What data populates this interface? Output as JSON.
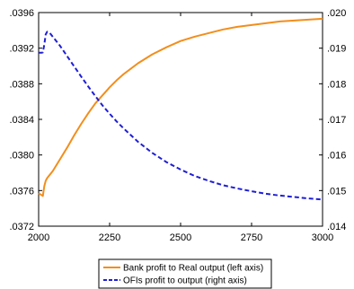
{
  "chart_data": {
    "type": "line",
    "title": "",
    "xlabel": "",
    "ylabel": "",
    "xlim": [
      2000,
      3000
    ],
    "ylim_left": [
      0.0372,
      0.0396
    ],
    "ylim_right": [
      0.014,
      0.02
    ],
    "x_ticks": [
      2000,
      2250,
      2500,
      2750,
      3000
    ],
    "x_tick_labels": [
      "2000",
      "2250",
      "2500",
      "2750",
      "3000"
    ],
    "y_left_ticks": [
      0.0372,
      0.0376,
      0.038,
      0.0384,
      0.0388,
      0.0392,
      0.0396
    ],
    "y_left_tick_labels": [
      ".0372",
      ".0376",
      ".0380",
      ".0384",
      ".0388",
      ".0392",
      ".0396"
    ],
    "y_right_ticks": [
      0.014,
      0.015,
      0.016,
      0.017,
      0.018,
      0.019,
      0.02
    ],
    "y_right_tick_labels": [
      ".014",
      ".015",
      ".016",
      ".017",
      ".018",
      ".019",
      ".020"
    ],
    "grid": false,
    "legend_position": "bottom",
    "series": [
      {
        "name": "Bank profit to Real output (left axis)",
        "axis": "left",
        "color": "#f28e1c",
        "dash": "solid",
        "x": [
          2000,
          2010,
          2015,
          2020,
          2025,
          2030,
          2040,
          2050,
          2075,
          2100,
          2125,
          2150,
          2175,
          2200,
          2225,
          2250,
          2275,
          2300,
          2350,
          2400,
          2450,
          2500,
          2550,
          2600,
          2650,
          2700,
          2750,
          2800,
          2850,
          2900,
          2950,
          3000
        ],
        "y": [
          0.03757,
          0.03755,
          0.03754,
          0.03765,
          0.03771,
          0.03774,
          0.03778,
          0.03782,
          0.03795,
          0.03808,
          0.03822,
          0.03835,
          0.03847,
          0.03858,
          0.03867,
          0.03876,
          0.03884,
          0.03891,
          0.03903,
          0.03913,
          0.03921,
          0.03928,
          0.03933,
          0.03937,
          0.03941,
          0.03944,
          0.03946,
          0.03948,
          0.0395,
          0.03951,
          0.03952,
          0.03953
        ]
      },
      {
        "name": "OFIs profit to output (right axis)",
        "axis": "right",
        "color": "#1f1fd6",
        "dash": "dashed",
        "x": [
          2000,
          2010,
          2015,
          2020,
          2025,
          2030,
          2040,
          2050,
          2075,
          2100,
          2125,
          2150,
          2175,
          2200,
          2225,
          2250,
          2275,
          2300,
          2350,
          2400,
          2450,
          2500,
          2550,
          2600,
          2650,
          2700,
          2750,
          2800,
          2850,
          2900,
          2950,
          3000
        ],
        "y": [
          0.01887,
          0.01887,
          0.01888,
          0.0191,
          0.01939,
          0.01946,
          0.01942,
          0.01932,
          0.01907,
          0.01878,
          0.01849,
          0.0182,
          0.01792,
          0.01765,
          0.01739,
          0.01716,
          0.01694,
          0.01674,
          0.01637,
          0.01606,
          0.0158,
          0.01559,
          0.01541,
          0.01527,
          0.01515,
          0.01506,
          0.01498,
          0.01491,
          0.01486,
          0.01482,
          0.01478,
          0.01475
        ]
      }
    ]
  }
}
